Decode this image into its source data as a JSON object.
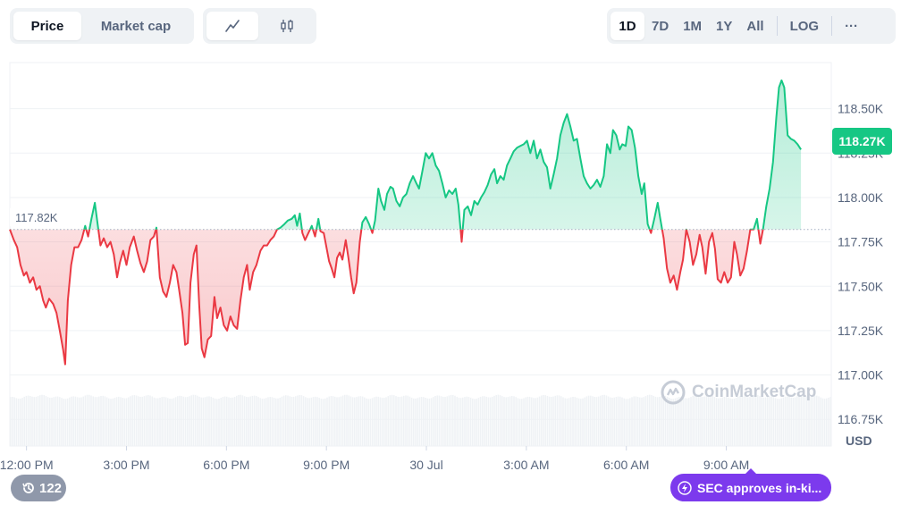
{
  "toolbar": {
    "type_options": [
      "Price",
      "Market cap"
    ],
    "active_type": "Price",
    "view_icons": [
      "line-chart-icon",
      "candlestick-icon"
    ],
    "range_options": [
      "1D",
      "7D",
      "1M",
      "1Y",
      "All"
    ],
    "active_range": "1D",
    "log_label": "LOG",
    "more_label": "···"
  },
  "colors": {
    "up": "#16c784",
    "down": "#ea3943",
    "up_fill": "#16c784",
    "down_fill": "#ea3943",
    "accent": "#7c3aed"
  },
  "chart_data": {
    "type": "area",
    "title": "",
    "xlabel": "",
    "ylabel": "USD",
    "ylim": [
      116.6,
      118.76
    ],
    "y_ticks": [
      {
        "value": 116.75,
        "label": "116.75K"
      },
      {
        "value": 117.0,
        "label": "117.00K"
      },
      {
        "value": 117.25,
        "label": "117.25K"
      },
      {
        "value": 117.5,
        "label": "117.50K"
      },
      {
        "value": 117.75,
        "label": "117.75K"
      },
      {
        "value": 118.0,
        "label": "118.00K"
      },
      {
        "value": 118.25,
        "label": "118.25K"
      },
      {
        "value": 118.5,
        "label": "118.50K"
      }
    ],
    "x_ticks": [
      "12:00 PM",
      "3:00 PM",
      "6:00 PM",
      "9:00 PM",
      "30 Jul",
      "3:00 AM",
      "6:00 AM",
      "9:00 AM"
    ],
    "x_ticks_hours": [
      0.5,
      3.5,
      6.5,
      9.5,
      12.5,
      15.5,
      18.5,
      21.5
    ],
    "x_range_hours": [
      0,
      24.65
    ],
    "baseline": 117.82,
    "baseline_label": "117.82K",
    "current_label": "118.27K",
    "series": [
      {
        "points": [
          [
            0,
            117.82
          ],
          [
            0.12,
            117.76
          ],
          [
            0.22,
            117.72
          ],
          [
            0.32,
            117.62
          ],
          [
            0.42,
            117.56
          ],
          [
            0.5,
            117.58
          ],
          [
            0.6,
            117.52
          ],
          [
            0.7,
            117.55
          ],
          [
            0.8,
            117.48
          ],
          [
            0.9,
            117.5
          ],
          [
            1.0,
            117.42
          ],
          [
            1.08,
            117.38
          ],
          [
            1.18,
            117.43
          ],
          [
            1.3,
            117.4
          ],
          [
            1.4,
            117.35
          ],
          [
            1.5,
            117.25
          ],
          [
            1.6,
            117.14
          ],
          [
            1.66,
            117.06
          ],
          [
            1.74,
            117.42
          ],
          [
            1.84,
            117.62
          ],
          [
            1.94,
            117.72
          ],
          [
            2.05,
            117.72
          ],
          [
            2.15,
            117.76
          ],
          [
            2.26,
            117.84
          ],
          [
            2.35,
            117.78
          ],
          [
            2.45,
            117.88
          ],
          [
            2.55,
            117.97
          ],
          [
            2.62,
            117.87
          ],
          [
            2.72,
            117.73
          ],
          [
            2.82,
            117.77
          ],
          [
            2.92,
            117.72
          ],
          [
            3.02,
            117.75
          ],
          [
            3.12,
            117.68
          ],
          [
            3.22,
            117.55
          ],
          [
            3.3,
            117.63
          ],
          [
            3.4,
            117.7
          ],
          [
            3.5,
            117.62
          ],
          [
            3.6,
            117.72
          ],
          [
            3.72,
            117.78
          ],
          [
            3.82,
            117.7
          ],
          [
            3.92,
            117.63
          ],
          [
            4.02,
            117.58
          ],
          [
            4.12,
            117.64
          ],
          [
            4.22,
            117.76
          ],
          [
            4.32,
            117.78
          ],
          [
            4.4,
            117.83
          ],
          [
            4.5,
            117.55
          ],
          [
            4.6,
            117.47
          ],
          [
            4.7,
            117.44
          ],
          [
            4.8,
            117.52
          ],
          [
            4.9,
            117.62
          ],
          [
            5.0,
            117.58
          ],
          [
            5.08,
            117.48
          ],
          [
            5.18,
            117.35
          ],
          [
            5.26,
            117.17
          ],
          [
            5.34,
            117.18
          ],
          [
            5.42,
            117.52
          ],
          [
            5.52,
            117.68
          ],
          [
            5.6,
            117.73
          ],
          [
            5.68,
            117.4
          ],
          [
            5.76,
            117.15
          ],
          [
            5.84,
            117.1
          ],
          [
            5.94,
            117.2
          ],
          [
            6.04,
            117.22
          ],
          [
            6.14,
            117.44
          ],
          [
            6.22,
            117.32
          ],
          [
            6.32,
            117.38
          ],
          [
            6.42,
            117.28
          ],
          [
            6.52,
            117.25
          ],
          [
            6.62,
            117.33
          ],
          [
            6.72,
            117.28
          ],
          [
            6.82,
            117.26
          ],
          [
            6.92,
            117.42
          ],
          [
            7.02,
            117.55
          ],
          [
            7.12,
            117.62
          ],
          [
            7.2,
            117.48
          ],
          [
            7.3,
            117.58
          ],
          [
            7.4,
            117.62
          ],
          [
            7.52,
            117.7
          ],
          [
            7.62,
            117.73
          ],
          [
            7.72,
            117.73
          ],
          [
            7.82,
            117.76
          ],
          [
            7.92,
            117.78
          ],
          [
            8.02,
            117.82
          ],
          [
            8.12,
            117.83
          ],
          [
            8.24,
            117.85
          ],
          [
            8.34,
            117.87
          ],
          [
            8.46,
            117.88
          ],
          [
            8.55,
            117.9
          ],
          [
            8.62,
            117.84
          ],
          [
            8.7,
            117.91
          ],
          [
            8.78,
            117.8
          ],
          [
            8.86,
            117.76
          ],
          [
            8.96,
            117.8
          ],
          [
            9.06,
            117.84
          ],
          [
            9.16,
            117.78
          ],
          [
            9.26,
            117.88
          ],
          [
            9.32,
            117.81
          ],
          [
            9.42,
            117.8
          ],
          [
            9.5,
            117.72
          ],
          [
            9.58,
            117.64
          ],
          [
            9.66,
            117.6
          ],
          [
            9.74,
            117.55
          ],
          [
            9.82,
            117.66
          ],
          [
            9.9,
            117.69
          ],
          [
            9.98,
            117.65
          ],
          [
            10.08,
            117.76
          ],
          [
            10.16,
            117.66
          ],
          [
            10.24,
            117.55
          ],
          [
            10.32,
            117.46
          ],
          [
            10.4,
            117.52
          ],
          [
            10.5,
            117.75
          ],
          [
            10.58,
            117.86
          ],
          [
            10.68,
            117.89
          ],
          [
            10.78,
            117.85
          ],
          [
            10.88,
            117.8
          ],
          [
            10.96,
            117.87
          ],
          [
            11.06,
            118.05
          ],
          [
            11.14,
            117.98
          ],
          [
            11.24,
            117.93
          ],
          [
            11.32,
            118.02
          ],
          [
            11.42,
            118.06
          ],
          [
            11.5,
            118.05
          ],
          [
            11.6,
            117.98
          ],
          [
            11.7,
            117.95
          ],
          [
            11.8,
            118.0
          ],
          [
            11.9,
            118.02
          ],
          [
            12.0,
            118.08
          ],
          [
            12.1,
            118.12
          ],
          [
            12.2,
            118.08
          ],
          [
            12.28,
            118.05
          ],
          [
            12.38,
            118.15
          ],
          [
            12.48,
            118.25
          ],
          [
            12.58,
            118.22
          ],
          [
            12.68,
            118.25
          ],
          [
            12.78,
            118.18
          ],
          [
            12.88,
            118.15
          ],
          [
            12.98,
            118.08
          ],
          [
            13.08,
            118.0
          ],
          [
            13.18,
            118.04
          ],
          [
            13.28,
            118.02
          ],
          [
            13.38,
            118.05
          ],
          [
            13.46,
            117.96
          ],
          [
            13.56,
            117.75
          ],
          [
            13.64,
            117.93
          ],
          [
            13.74,
            117.95
          ],
          [
            13.84,
            117.9
          ],
          [
            13.94,
            117.98
          ],
          [
            14.04,
            117.96
          ],
          [
            14.14,
            118.0
          ],
          [
            14.24,
            118.03
          ],
          [
            14.34,
            118.07
          ],
          [
            14.44,
            118.13
          ],
          [
            14.54,
            118.16
          ],
          [
            14.62,
            118.08
          ],
          [
            14.72,
            118.12
          ],
          [
            14.82,
            118.1
          ],
          [
            14.92,
            118.18
          ],
          [
            15.02,
            118.22
          ],
          [
            15.12,
            118.26
          ],
          [
            15.22,
            118.28
          ],
          [
            15.32,
            118.29
          ],
          [
            15.42,
            118.3
          ],
          [
            15.52,
            118.32
          ],
          [
            15.62,
            118.25
          ],
          [
            15.72,
            118.32
          ],
          [
            15.82,
            118.22
          ],
          [
            15.92,
            118.27
          ],
          [
            16.02,
            118.2
          ],
          [
            16.12,
            118.17
          ],
          [
            16.22,
            118.05
          ],
          [
            16.32,
            118.13
          ],
          [
            16.42,
            118.22
          ],
          [
            16.52,
            118.35
          ],
          [
            16.62,
            118.42
          ],
          [
            16.72,
            118.47
          ],
          [
            16.82,
            118.4
          ],
          [
            16.92,
            118.32
          ],
          [
            17.02,
            118.33
          ],
          [
            17.12,
            118.22
          ],
          [
            17.22,
            118.12
          ],
          [
            17.32,
            118.08
          ],
          [
            17.42,
            118.05
          ],
          [
            17.52,
            118.07
          ],
          [
            17.62,
            118.1
          ],
          [
            17.72,
            118.06
          ],
          [
            17.82,
            118.12
          ],
          [
            17.92,
            118.3
          ],
          [
            18.02,
            118.25
          ],
          [
            18.1,
            118.38
          ],
          [
            18.2,
            118.35
          ],
          [
            18.3,
            118.27
          ],
          [
            18.38,
            118.3
          ],
          [
            18.48,
            118.29
          ],
          [
            18.56,
            118.4
          ],
          [
            18.66,
            118.38
          ],
          [
            18.76,
            118.28
          ],
          [
            18.86,
            118.12
          ],
          [
            18.96,
            118.02
          ],
          [
            19.04,
            118.08
          ],
          [
            19.14,
            117.85
          ],
          [
            19.24,
            117.8
          ],
          [
            19.34,
            117.88
          ],
          [
            19.44,
            117.97
          ],
          [
            19.52,
            117.88
          ],
          [
            19.62,
            117.77
          ],
          [
            19.72,
            117.6
          ],
          [
            19.82,
            117.52
          ],
          [
            19.92,
            117.56
          ],
          [
            20.02,
            117.48
          ],
          [
            20.12,
            117.58
          ],
          [
            20.2,
            117.65
          ],
          [
            20.3,
            117.82
          ],
          [
            20.4,
            117.75
          ],
          [
            20.5,
            117.62
          ],
          [
            20.6,
            117.68
          ],
          [
            20.7,
            117.79
          ],
          [
            20.78,
            117.72
          ],
          [
            20.88,
            117.57
          ],
          [
            20.98,
            117.75
          ],
          [
            21.08,
            117.8
          ],
          [
            21.16,
            117.71
          ],
          [
            21.24,
            117.54
          ],
          [
            21.34,
            117.52
          ],
          [
            21.44,
            117.58
          ],
          [
            21.54,
            117.52
          ],
          [
            21.64,
            117.55
          ],
          [
            21.74,
            117.75
          ],
          [
            21.82,
            117.68
          ],
          [
            21.92,
            117.56
          ],
          [
            22.02,
            117.6
          ],
          [
            22.12,
            117.7
          ],
          [
            22.22,
            117.82
          ],
          [
            22.32,
            117.82
          ],
          [
            22.42,
            117.88
          ],
          [
            22.52,
            117.74
          ],
          [
            22.6,
            117.82
          ],
          [
            22.7,
            117.95
          ],
          [
            22.8,
            118.05
          ],
          [
            22.9,
            118.2
          ],
          [
            23.0,
            118.45
          ],
          [
            23.08,
            118.62
          ],
          [
            23.16,
            118.66
          ],
          [
            23.24,
            118.62
          ],
          [
            23.34,
            118.35
          ],
          [
            23.44,
            118.33
          ],
          [
            23.54,
            118.32
          ],
          [
            23.64,
            118.3
          ],
          [
            23.74,
            118.27
          ]
        ]
      }
    ]
  },
  "axis": {
    "currency_label": "USD"
  },
  "badges": {
    "history_count": "122",
    "news_label": "SEC approves in-ki..."
  },
  "watermark": {
    "text": "CoinMarketCap"
  }
}
